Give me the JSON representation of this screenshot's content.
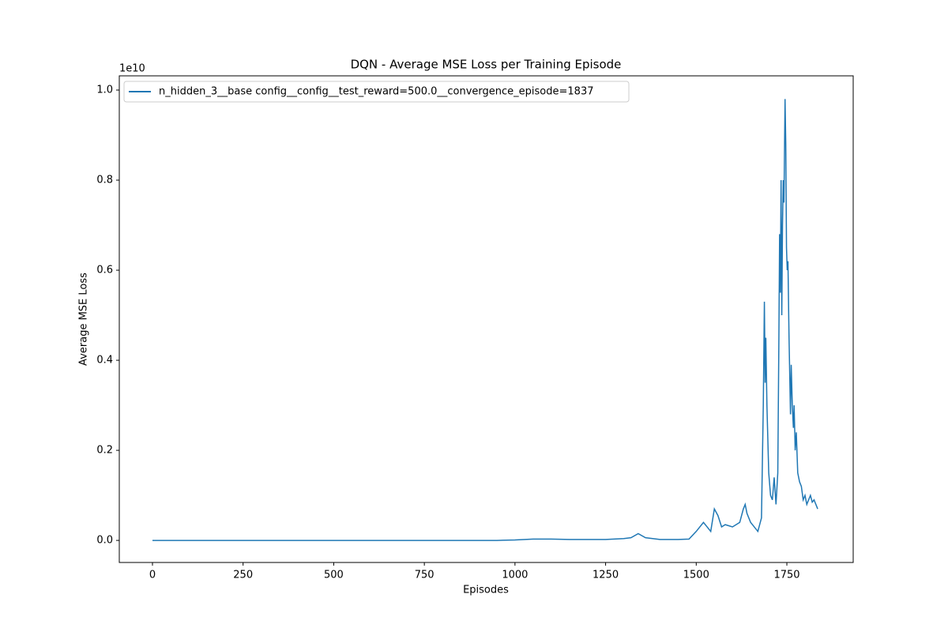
{
  "chart_data": {
    "type": "line",
    "title": "DQN - Average MSE Loss per Training Episode",
    "x_label": "Episodes",
    "y_label": "Average MSE Loss",
    "y_offset_label": "1e10",
    "legend": "upper left",
    "x": [
      0,
      50,
      100,
      150,
      200,
      250,
      300,
      350,
      400,
      450,
      500,
      550,
      600,
      650,
      700,
      750,
      800,
      850,
      900,
      950,
      1000,
      1050,
      1100,
      1150,
      1200,
      1250,
      1300,
      1320,
      1340,
      1360,
      1400,
      1450,
      1480,
      1500,
      1520,
      1530,
      1540,
      1550,
      1560,
      1570,
      1580,
      1600,
      1620,
      1630,
      1635,
      1640,
      1650,
      1660,
      1670,
      1680,
      1685,
      1688,
      1690,
      1692,
      1695,
      1700,
      1705,
      1710,
      1715,
      1720,
      1725,
      1728,
      1730,
      1732,
      1734,
      1736,
      1738,
      1740,
      1742,
      1745,
      1747,
      1749,
      1751,
      1753,
      1756,
      1760,
      1762,
      1765,
      1768,
      1770,
      1773,
      1776,
      1780,
      1785,
      1790,
      1795,
      1800,
      1805,
      1810,
      1815,
      1820,
      1825,
      1830,
      1835
    ],
    "series": [
      {
        "name": "n_hidden_3__base config__config__test_reward=500.0__convergence_episode=1837",
        "color": "#1f77b4",
        "values": [
          0,
          0,
          0,
          0,
          0,
          0,
          0,
          0,
          0,
          0,
          0,
          0,
          0,
          0,
          0,
          0,
          0,
          0,
          0,
          0,
          0.001,
          0.003,
          0.003,
          0.002,
          0.002,
          0.002,
          0.004,
          0.006,
          0.015,
          0.006,
          0.002,
          0.002,
          0.003,
          0.02,
          0.04,
          0.03,
          0.02,
          0.07,
          0.055,
          0.03,
          0.035,
          0.03,
          0.04,
          0.07,
          0.08,
          0.06,
          0.04,
          0.03,
          0.02,
          0.05,
          0.3,
          0.53,
          0.35,
          0.45,
          0.3,
          0.15,
          0.1,
          0.09,
          0.14,
          0.08,
          0.15,
          0.45,
          0.68,
          0.55,
          0.8,
          0.5,
          0.7,
          0.8,
          0.75,
          0.98,
          0.88,
          0.65,
          0.6,
          0.62,
          0.45,
          0.28,
          0.39,
          0.3,
          0.25,
          0.3,
          0.2,
          0.24,
          0.15,
          0.13,
          0.12,
          0.09,
          0.1,
          0.08,
          0.09,
          0.1,
          0.085,
          0.09,
          0.08,
          0.07
        ]
      }
    ],
    "xlim": [
      -91.5,
      1933
    ],
    "ylim": [
      -0.049,
      1.0316
    ],
    "xticks": [
      0,
      250,
      500,
      750,
      1000,
      1250,
      1500,
      1750
    ],
    "yticks": [
      {
        "value": 0,
        "label": "0.0"
      },
      0.2,
      0.4,
      0.6,
      0.8,
      {
        "value": 1,
        "label": "1.0"
      }
    ]
  }
}
